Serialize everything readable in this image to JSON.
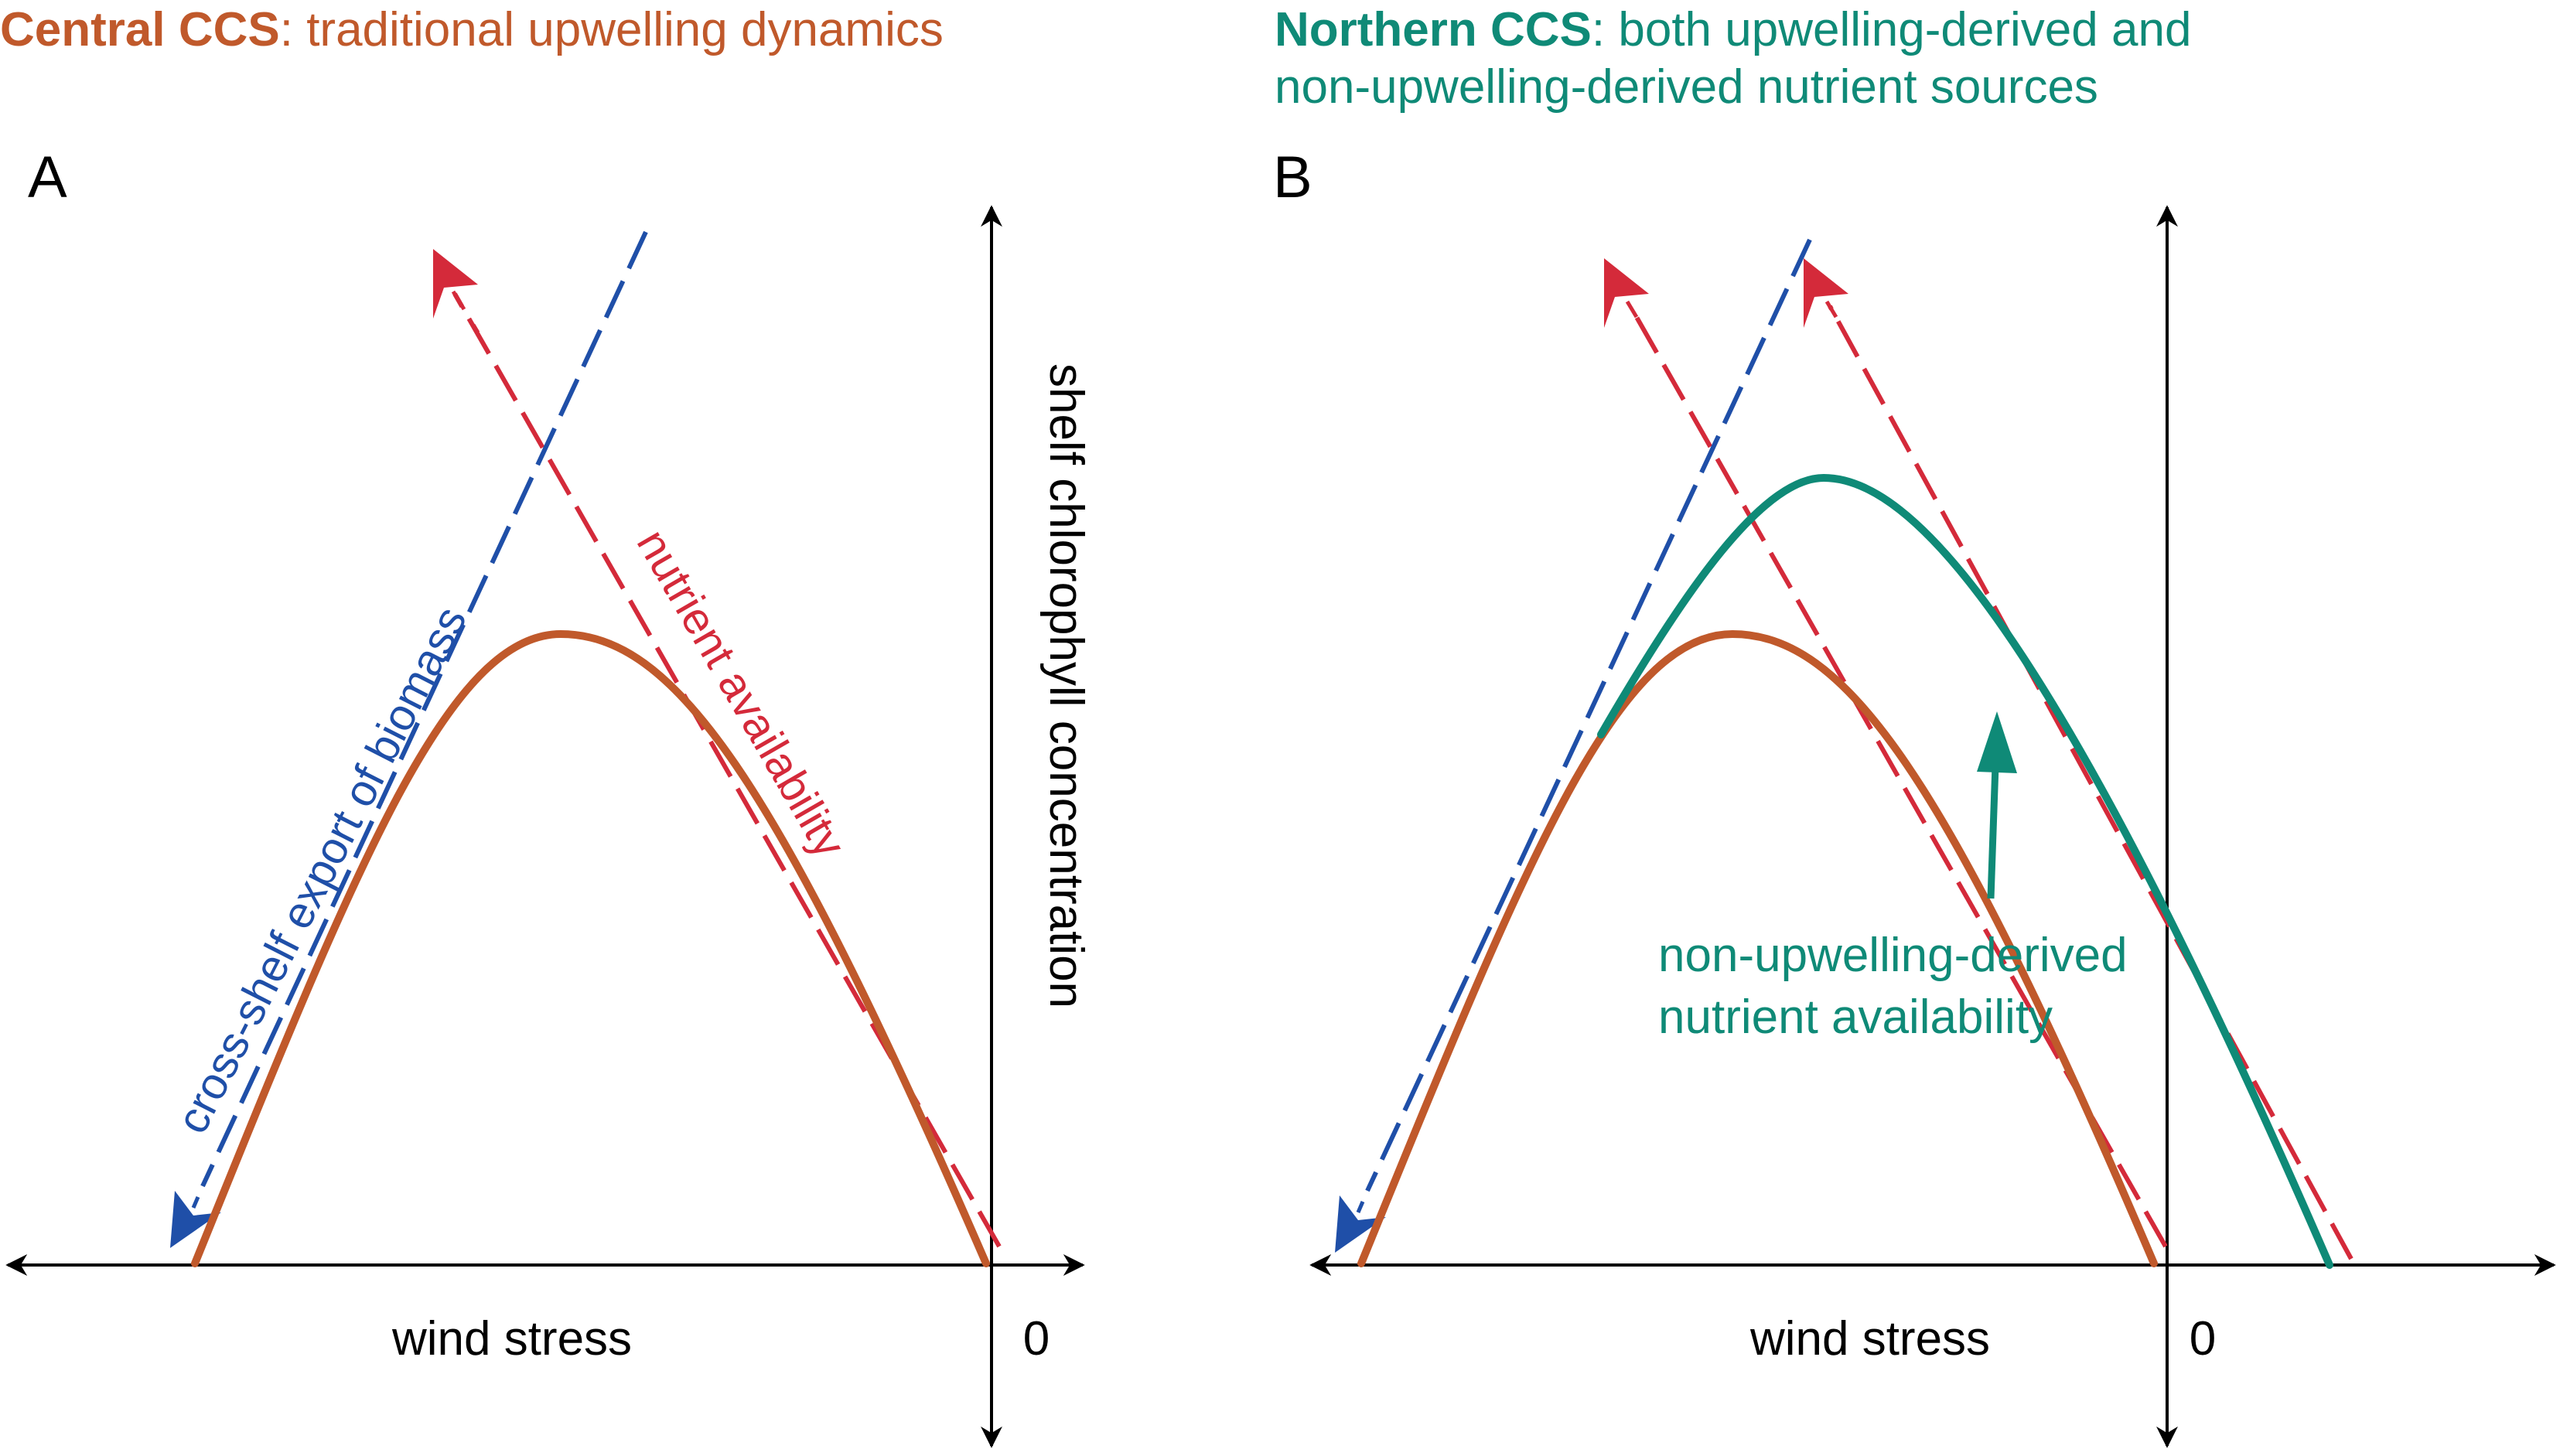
{
  "panel_a": {
    "title_bold": "Central CCS",
    "title_rest": ": traditional upwelling dynamics",
    "letter": "A",
    "y_axis_label": "shelf chlorophyll concentration",
    "x_axis_label": "wind stress",
    "zero_label": "0",
    "blue_line_label": "cross-shelf export of biomass",
    "red_line_label": "nutrient availability"
  },
  "panel_b": {
    "title_bold": "Northern CCS",
    "title_rest_line1": ": both upwelling-derived and",
    "title_line2": "non-upwelling-derived nutrient sources",
    "letter": "B",
    "x_axis_label": "wind stress",
    "zero_label": "0",
    "annotation_line1": "non-upwelling-derived",
    "annotation_line2": "nutrient availability"
  },
  "colors": {
    "central": "#c0592b",
    "northern": "#0f8a77",
    "nutrient": "#d42a3a",
    "export": "#1f4fa8",
    "axis": "#000000"
  }
}
